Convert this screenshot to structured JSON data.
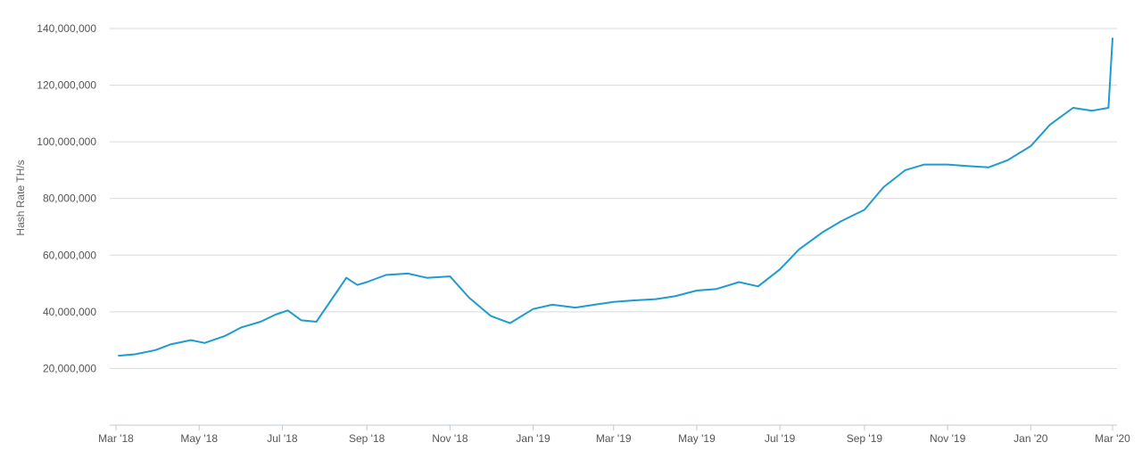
{
  "chart_data": {
    "type": "line",
    "title": "",
    "xlabel": "",
    "ylabel": "Hash Rate TH/s",
    "ylim": [
      0,
      140000000
    ],
    "grid": true,
    "legend": "none",
    "y_ticks": [
      {
        "value": 20000000,
        "label": "20,000,000"
      },
      {
        "value": 40000000,
        "label": "40,000,000"
      },
      {
        "value": 60000000,
        "label": "60,000,000"
      },
      {
        "value": 80000000,
        "label": "80,000,000"
      },
      {
        "value": 100000000,
        "label": "100,000,000"
      },
      {
        "value": 120000000,
        "label": "120,000,000"
      },
      {
        "value": 140000000,
        "label": "140,000,000"
      }
    ],
    "x_ticks": [
      {
        "date": "2018-03-01",
        "label": "Mar '18"
      },
      {
        "date": "2018-05-01",
        "label": "May '18"
      },
      {
        "date": "2018-07-01",
        "label": "Jul '18"
      },
      {
        "date": "2018-09-01",
        "label": "Sep '18"
      },
      {
        "date": "2018-11-01",
        "label": "Nov '18"
      },
      {
        "date": "2019-01-01",
        "label": "Jan '19"
      },
      {
        "date": "2019-03-01",
        "label": "Mar '19"
      },
      {
        "date": "2019-05-01",
        "label": "May '19"
      },
      {
        "date": "2019-07-01",
        "label": "Jul '19"
      },
      {
        "date": "2019-09-01",
        "label": "Sep '19"
      },
      {
        "date": "2019-11-01",
        "label": "Nov '19"
      },
      {
        "date": "2020-01-01",
        "label": "Jan '20"
      },
      {
        "date": "2020-03-01",
        "label": "Mar '20"
      }
    ],
    "xlim": [
      "2018-03-01",
      "2020-03-01"
    ],
    "line_color": "#1f9bcf",
    "series": [
      {
        "x": [
          "2018-03-03",
          "2018-03-15",
          "2018-03-30",
          "2018-04-10",
          "2018-04-25",
          "2018-05-05",
          "2018-05-20",
          "2018-06-01",
          "2018-06-15",
          "2018-06-26",
          "2018-07-05",
          "2018-07-15",
          "2018-07-26",
          "2018-08-17",
          "2018-08-25",
          "2018-09-01",
          "2018-09-15",
          "2018-10-01",
          "2018-10-15",
          "2018-11-01",
          "2018-11-15",
          "2018-12-01",
          "2018-12-15",
          "2019-01-01",
          "2019-01-15",
          "2019-02-01",
          "2019-02-15",
          "2019-03-01",
          "2019-03-15",
          "2019-04-01",
          "2019-04-15",
          "2019-05-01",
          "2019-05-15",
          "2019-06-01",
          "2019-06-15",
          "2019-07-01",
          "2019-07-15",
          "2019-08-01",
          "2019-08-15",
          "2019-09-01",
          "2019-09-15",
          "2019-10-01",
          "2019-10-15",
          "2019-11-01",
          "2019-11-15",
          "2019-12-01",
          "2019-12-15",
          "2020-01-01",
          "2020-01-15",
          "2020-02-01",
          "2020-02-15",
          "2020-02-27",
          "2020-03-01"
        ],
        "values": [
          24500000,
          25000000,
          26500000,
          28500000,
          30000000,
          29000000,
          31500000,
          34500000,
          36500000,
          39000000,
          40500000,
          37000000,
          36500000,
          52000000,
          49500000,
          50500000,
          53000000,
          53500000,
          52000000,
          52500000,
          45000000,
          38500000,
          36000000,
          41000000,
          42500000,
          41500000,
          42500000,
          43500000,
          44000000,
          44500000,
          45500000,
          47500000,
          48000000,
          50500000,
          49000000,
          55000000,
          62000000,
          68000000,
          72000000,
          76000000,
          84000000,
          90000000,
          92000000,
          92000000,
          91500000,
          91000000,
          93500000,
          98500000,
          106000000,
          112000000,
          111000000,
          112000000,
          136500000
        ]
      }
    ]
  }
}
